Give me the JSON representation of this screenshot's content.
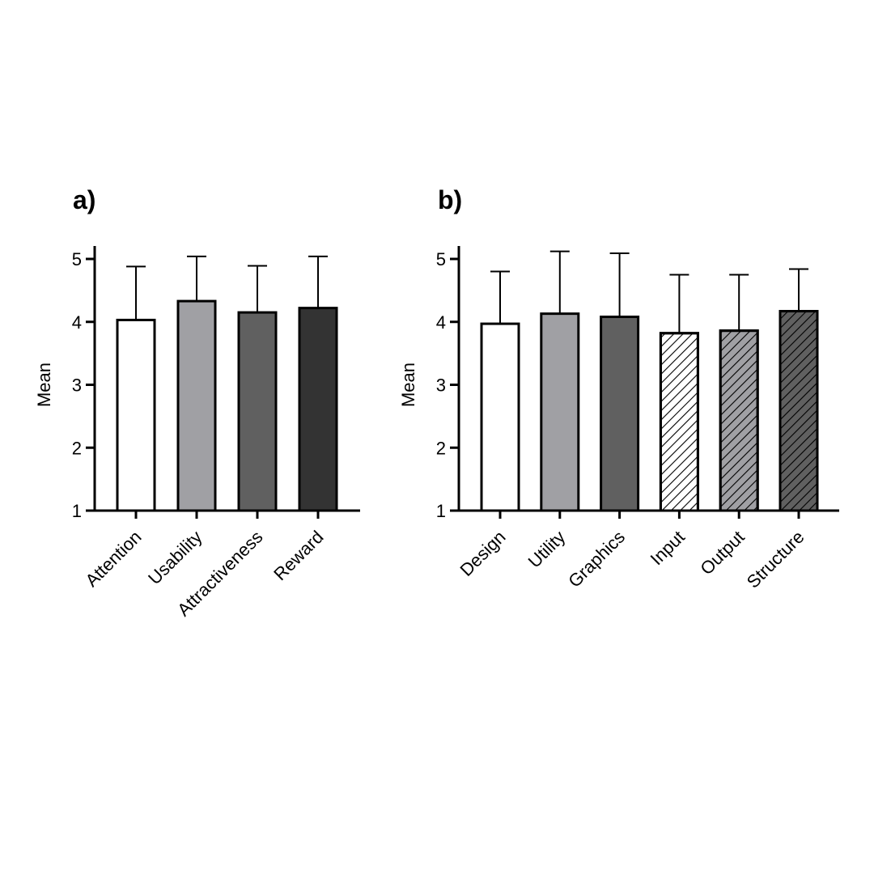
{
  "chart_data": [
    {
      "type": "bar",
      "panel_label": "a)",
      "ylabel": "Mean",
      "ylim": [
        1,
        5
      ],
      "yticks": [
        "1",
        "2",
        "3",
        "4",
        "5"
      ],
      "categories": [
        "Attention",
        "Usability",
        "Attractiveness",
        "Reward"
      ],
      "values": [
        4.03,
        4.33,
        4.15,
        4.22
      ],
      "error_upper": [
        4.88,
        5.04,
        4.89,
        5.04
      ],
      "fills": [
        "#ffffff",
        "#a0a0a4",
        "#606060",
        "#333333"
      ],
      "patterns": [
        "solid",
        "solid",
        "solid",
        "solid"
      ],
      "grid": false,
      "legend": "none"
    },
    {
      "type": "bar",
      "panel_label": "b)",
      "ylabel": "Mean",
      "ylim": [
        1,
        5
      ],
      "yticks": [
        "1",
        "2",
        "3",
        "4",
        "5"
      ],
      "categories": [
        "Design",
        "Utility",
        "Graphics",
        "Input",
        "Output",
        "Structure"
      ],
      "values": [
        3.97,
        4.13,
        4.08,
        3.82,
        3.86,
        4.17
      ],
      "error_upper": [
        4.8,
        5.12,
        5.09,
        4.75,
        4.75,
        4.84
      ],
      "fills": [
        "#ffffff",
        "#a0a0a4",
        "#606060",
        "#ffffff",
        "#a0a0a4",
        "#606060"
      ],
      "patterns": [
        "solid",
        "solid",
        "solid",
        "hatch",
        "hatch",
        "hatch"
      ],
      "grid": false,
      "legend": "none"
    }
  ]
}
